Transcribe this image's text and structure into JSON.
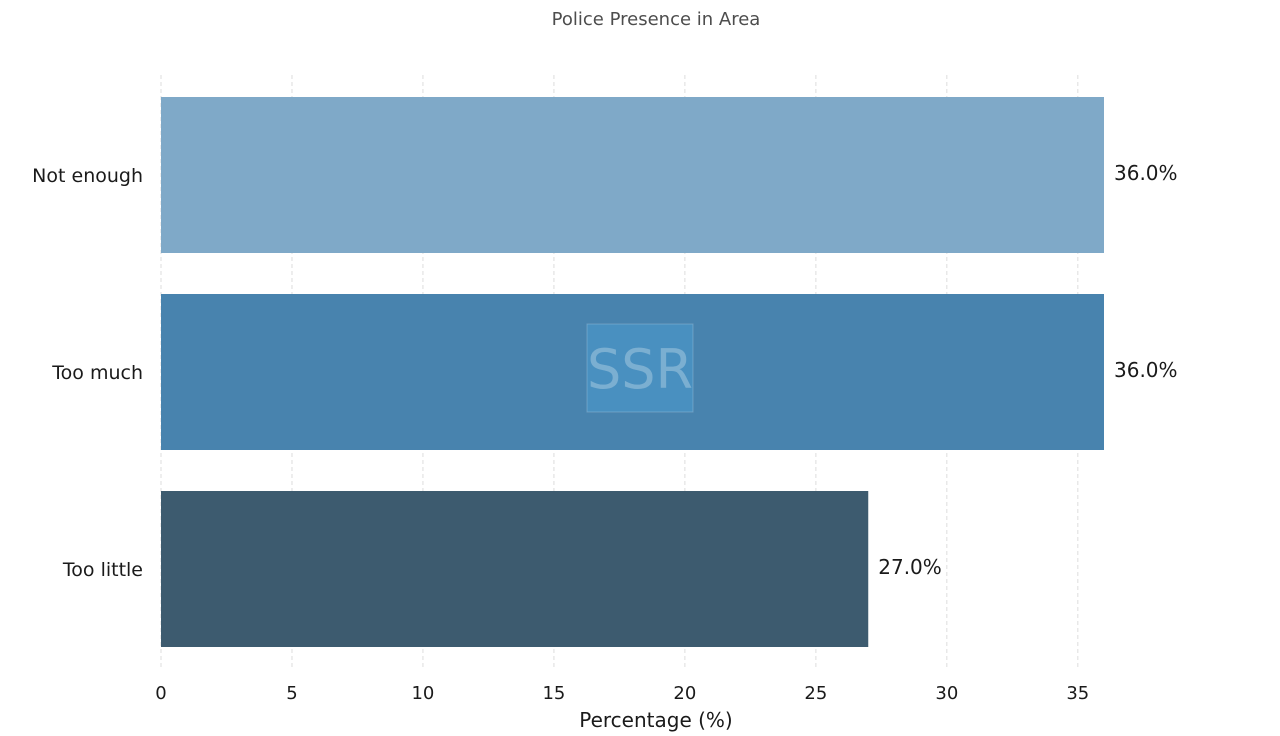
{
  "chart_data": {
    "type": "bar",
    "orientation": "horizontal",
    "title": "Police Presence in Area",
    "xlabel": "Percentage (%)",
    "ylabel": "",
    "xlim": [
      0,
      36
    ],
    "xticks": [
      0,
      5,
      10,
      15,
      20,
      25,
      30,
      35
    ],
    "grid": "vertical dashed",
    "categories": [
      "Not enough",
      "Too much",
      "Too little"
    ],
    "values": [
      36.0,
      36.0,
      27.0
    ],
    "data_labels": [
      "36.0%",
      "36.0%",
      "27.0%"
    ],
    "colors": [
      "#7fa9c8",
      "#4883ae",
      "#3d5b6f"
    ],
    "watermark": "SSR"
  }
}
